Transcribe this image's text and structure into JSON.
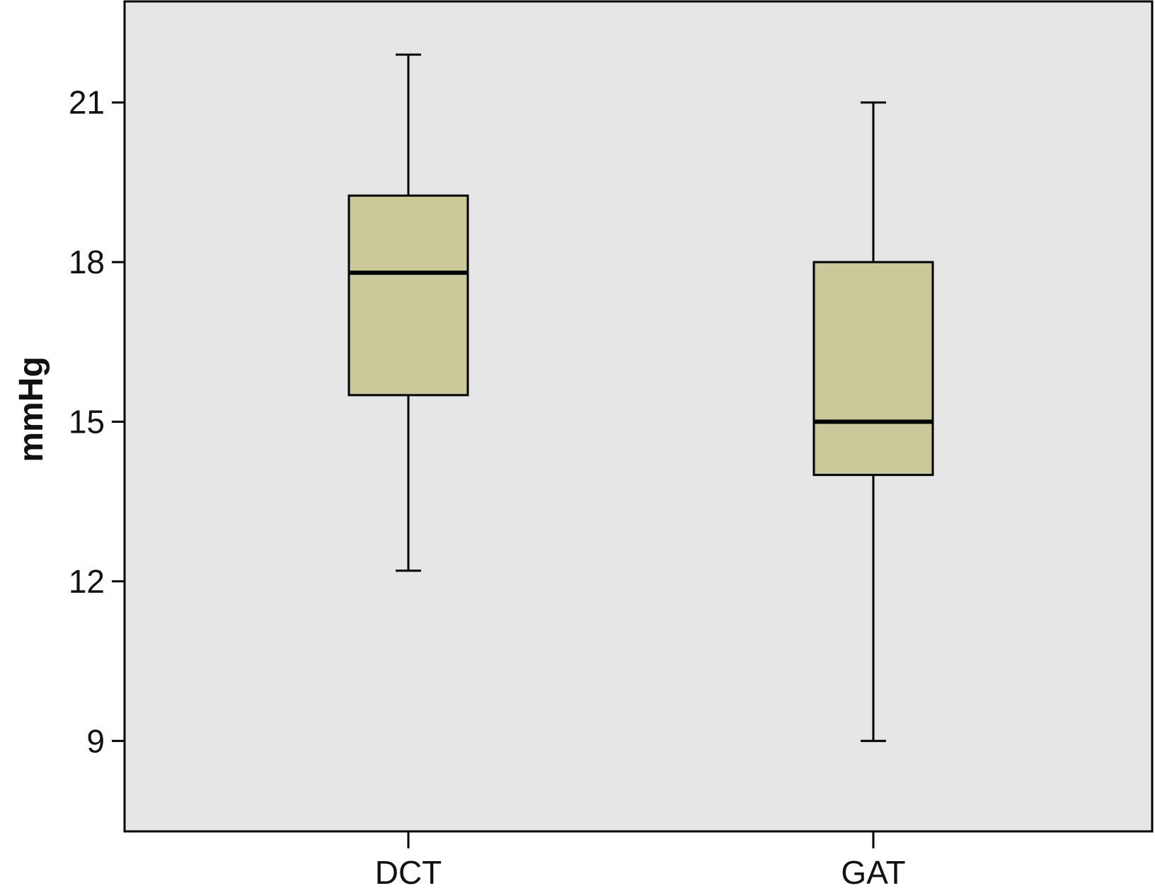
{
  "chart_data": {
    "type": "box",
    "title": "",
    "xlabel": "",
    "ylabel": "mmHg",
    "ylim": [
      7.3,
      22.9
    ],
    "yticks": [
      9,
      12,
      15,
      18,
      21
    ],
    "grid": false,
    "legend": "none",
    "colors": {
      "plot_background": "#e6e6e6",
      "box_fill": "#cbc99a",
      "stroke": "#000000"
    },
    "categories": [
      "DCT",
      "GAT"
    ],
    "boxes": [
      {
        "category": "DCT",
        "whisker_low": 12.2,
        "q1": 15.5,
        "median": 17.8,
        "q3": 19.25,
        "whisker_high": 21.9
      },
      {
        "category": "GAT",
        "whisker_low": 9.0,
        "q1": 14.0,
        "median": 15.0,
        "q3": 18.0,
        "whisker_high": 21.0
      }
    ]
  }
}
